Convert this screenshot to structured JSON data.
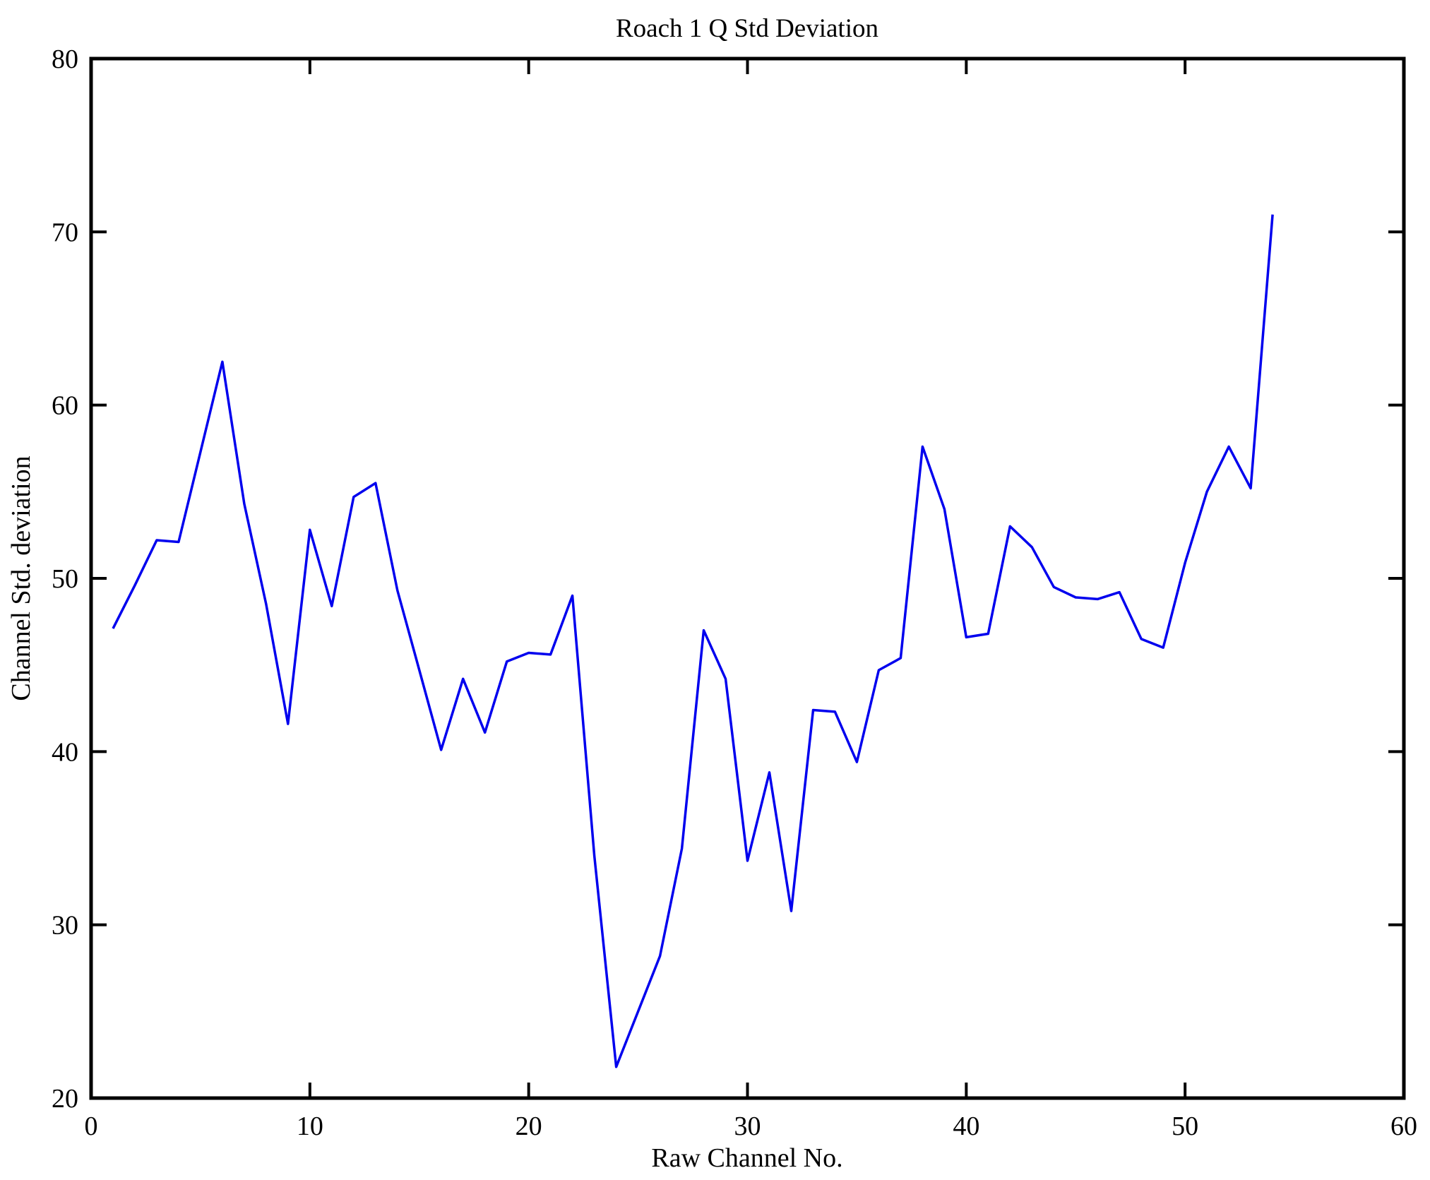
{
  "figure": {
    "title": "Roach 1 Q Std Deviation",
    "xlabel": "Raw Channel No.",
    "ylabel": "Channel Std. deviation"
  },
  "chart_data": {
    "type": "line",
    "title": "Roach 1 Q Std Deviation",
    "xlabel": "Raw Channel No.",
    "ylabel": "Channel Std. deviation",
    "xlim": [
      0,
      60
    ],
    "ylim": [
      20,
      80
    ],
    "xticks": [
      0,
      10,
      20,
      30,
      40,
      50,
      60
    ],
    "yticks": [
      20,
      30,
      40,
      50,
      60,
      70,
      80
    ],
    "grid": false,
    "legend": null,
    "line_color": "#0000EE",
    "axis_color": "#000000",
    "background_color": "#ffffff",
    "series": [
      {
        "name": "Channel Std deviation",
        "x": [
          1,
          2,
          3,
          4,
          5,
          6,
          7,
          8,
          9,
          10,
          11,
          12,
          13,
          14,
          15,
          16,
          17,
          18,
          19,
          20,
          21,
          22,
          23,
          24,
          25,
          26,
          27,
          28,
          29,
          30,
          31,
          32,
          33,
          34,
          35,
          36,
          37,
          38,
          39,
          40,
          41,
          42,
          43,
          44,
          45,
          46,
          47,
          48,
          49,
          50,
          51,
          52,
          53,
          54
        ],
        "y": [
          47.1,
          49.6,
          52.2,
          52.1,
          57.3,
          62.5,
          54.3,
          48.5,
          41.6,
          52.8,
          48.4,
          54.7,
          55.5,
          49.3,
          44.7,
          40.1,
          44.2,
          41.1,
          45.2,
          45.7,
          45.6,
          49.0,
          34.0,
          21.8,
          25.0,
          28.2,
          34.4,
          47.0,
          44.2,
          33.7,
          38.8,
          30.8,
          42.4,
          42.3,
          39.4,
          44.7,
          45.4,
          57.6,
          54.0,
          46.6,
          46.8,
          53.0,
          51.8,
          49.5,
          48.9,
          48.8,
          49.2,
          46.5,
          46.0,
          50.9,
          55.0,
          57.6,
          55.2,
          71.0
        ]
      }
    ]
  }
}
